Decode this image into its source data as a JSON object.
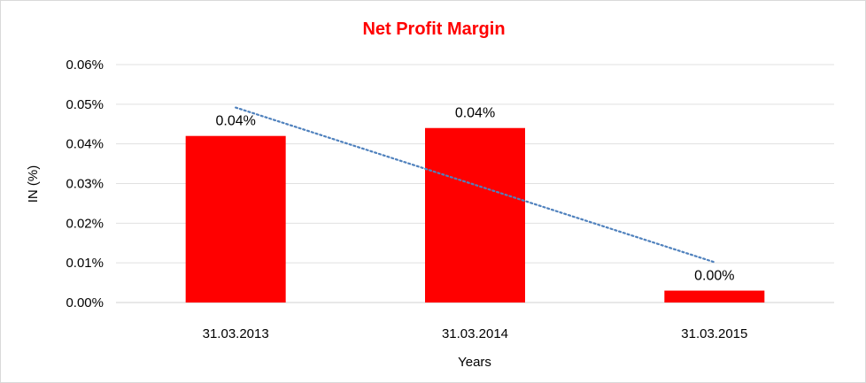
{
  "chart_data": {
    "type": "bar",
    "title": "Net Profit Margin",
    "xlabel": "Years",
    "ylabel": "IN (%)",
    "categories": [
      "31.03.2013",
      "31.03.2014",
      "31.03.2015"
    ],
    "series": [
      {
        "values": [
          0.042,
          0.044,
          0.003
        ],
        "data_labels": [
          "0.04%",
          "0.04%",
          "0.00%"
        ],
        "color": "#ff0000"
      }
    ],
    "trendline": {
      "type": "linear",
      "style": "dotted",
      "color": "#4f81bd"
    },
    "ylim": [
      0,
      0.06
    ],
    "yticks": [
      "0.00%",
      "0.01%",
      "0.02%",
      "0.03%",
      "0.04%",
      "0.05%",
      "0.06%"
    ],
    "grid": true,
    "legend": "none",
    "title_color": "#ff0000"
  }
}
